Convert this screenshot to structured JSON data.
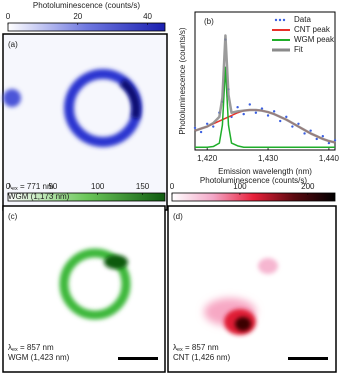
{
  "chart_data": [
    {
      "type": "colorbar",
      "title": "Photoluminescence (counts/s)",
      "xlim": [
        0,
        45
      ],
      "xticks": [
        0,
        20,
        40
      ],
      "colors": [
        "#ffffff",
        "#6f78e0",
        "#1a1fb0"
      ]
    },
    {
      "type": "line",
      "label": "(b)",
      "xlabel": "Emission wavelength (nm)",
      "ylabel": "Photoluminescence (counts/s)",
      "xlim": [
        1418,
        1441
      ],
      "ylim": [
        0,
        100
      ],
      "xticks": [
        {
          "value": 1420,
          "label": "1,420"
        },
        {
          "value": 1430,
          "label": "1,430"
        },
        {
          "value": 1440,
          "label": "1,440"
        }
      ],
      "x": [
        1418,
        1419,
        1420,
        1421,
        1422,
        1422.5,
        1423,
        1423.5,
        1424,
        1425,
        1426,
        1427,
        1428,
        1429,
        1430,
        1431,
        1432,
        1433,
        1434,
        1435,
        1436,
        1437,
        1438,
        1439,
        1440,
        1441
      ],
      "series": [
        {
          "name": "Data",
          "color": "#3b5fe0",
          "style": "scatter",
          "values": [
            16,
            13,
            19,
            17,
            27,
            35,
            80,
            44,
            24,
            31,
            26,
            33,
            27,
            30,
            25,
            28,
            21,
            24,
            17,
            19,
            12,
            14,
            8,
            10,
            5,
            7
          ]
        },
        {
          "name": "CNT peak",
          "color": "#e8302a",
          "style": "line",
          "values": [
            14,
            15.5,
            17,
            19,
            21,
            22,
            23,
            24,
            25,
            27,
            28.5,
            29,
            29,
            28.5,
            27.5,
            26,
            24,
            22,
            19.5,
            17,
            14.5,
            12,
            10,
            8,
            6.5,
            5.5
          ]
        },
        {
          "name": "WGM peak",
          "color": "#1fae2a",
          "style": "line",
          "values": [
            2,
            2,
            2,
            2.5,
            5,
            18,
            60,
            18,
            5,
            3,
            2,
            2,
            2,
            2,
            2,
            2,
            2,
            2,
            2,
            2,
            2,
            2,
            2,
            2,
            2,
            2
          ]
        },
        {
          "name": "Fit",
          "color": "#8a8a8a",
          "style": "line",
          "values": [
            14,
            15.5,
            17,
            19.5,
            24,
            38,
            83,
            40,
            27,
            28,
            28.5,
            29,
            29,
            28.5,
            27.5,
            26,
            24,
            22,
            19.5,
            17,
            14.5,
            12,
            10,
            8,
            6.5,
            5.5
          ]
        }
      ]
    },
    {
      "type": "colorbar",
      "xlim": [
        0,
        175
      ],
      "xticks": [
        0,
        50,
        100,
        150
      ],
      "colors": [
        "#ffffff",
        "#6bc75a",
        "#0e5a10"
      ]
    },
    {
      "type": "colorbar",
      "title": "Photoluminescence (counts/s)",
      "xlim": [
        0,
        240
      ],
      "xticks": [
        0,
        100,
        200
      ],
      "colors": [
        "#ffffff",
        "#f3a8c8",
        "#e8203a",
        "#5a0a10",
        "#000000"
      ]
    }
  ],
  "panels": [
    {
      "label": "(a)",
      "symbol": "λ",
      "sub": "ex",
      "excitation": " = 771 nm",
      "mode": "WGM (1,173 nm)"
    },
    {
      "label": "(c)",
      "symbol": "λ",
      "sub": "ex",
      "excitation": " = 857 nm",
      "mode": "WGM (1,423 nm)"
    },
    {
      "label": "(d)",
      "symbol": "λ",
      "sub": "ex",
      "excitation": " = 857 nm",
      "mode": "CNT (1,426 nm)"
    }
  ]
}
